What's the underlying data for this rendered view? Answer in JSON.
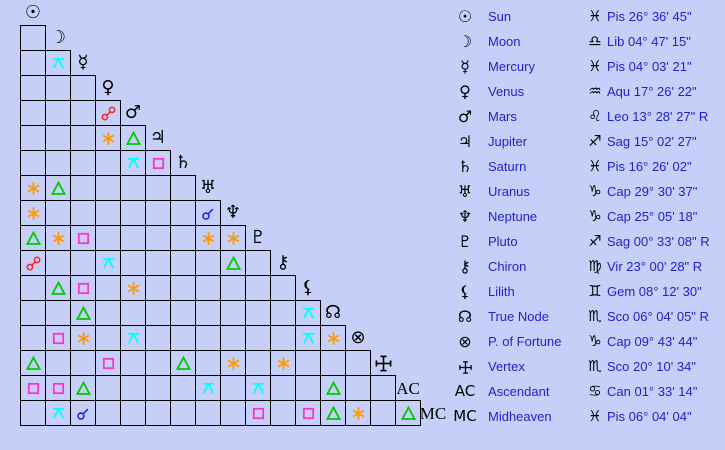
{
  "background_color": "#c6cff7",
  "grid_line_color": "#000000",
  "text_color": "#2222cc",
  "glyph_color": "#000000",
  "aspect_colors": {
    "conjunction": "#2222ee",
    "sextile": "#ff9900",
    "square": "#ff33cc",
    "trine": "#00cc00",
    "opposition": "#ff2222",
    "quincunx": "#00ffff"
  },
  "planets": [
    {
      "id": "sun",
      "glyph": "☉",
      "glyph_kind": "astro",
      "name": "Sun",
      "sign_glyph": "♓",
      "position": "Pis 26° 36' 45\""
    },
    {
      "id": "moon",
      "glyph": "☽",
      "glyph_kind": "astro",
      "name": "Moon",
      "sign_glyph": "♎",
      "position": "Lib 04° 47' 15\""
    },
    {
      "id": "mercury",
      "glyph": "☿",
      "glyph_kind": "astro",
      "name": "Mercury",
      "sign_glyph": "♓",
      "position": "Pis 04° 03' 21\""
    },
    {
      "id": "venus",
      "glyph": "♀",
      "glyph_kind": "astro",
      "name": "Venus",
      "sign_glyph": "♒",
      "position": "Aqu 17° 26' 22\""
    },
    {
      "id": "mars",
      "glyph": "♂",
      "glyph_kind": "astro",
      "name": "Mars",
      "sign_glyph": "♌",
      "position": "Leo 13° 28' 27\" R"
    },
    {
      "id": "jupiter",
      "glyph": "♃",
      "glyph_kind": "astro",
      "name": "Jupiter",
      "sign_glyph": "♐",
      "position": "Sag 15° 02' 27\""
    },
    {
      "id": "saturn",
      "glyph": "♄",
      "glyph_kind": "astro",
      "name": "Saturn",
      "sign_glyph": "♓",
      "position": "Pis 16° 26' 02\""
    },
    {
      "id": "uranus",
      "glyph": "♅",
      "glyph_kind": "astro",
      "name": "Uranus",
      "sign_glyph": "♑",
      "position": "Cap 29° 30' 37\""
    },
    {
      "id": "neptune",
      "glyph": "♆",
      "glyph_kind": "astro",
      "name": "Neptune",
      "sign_glyph": "♑",
      "position": "Cap 25° 05' 18\""
    },
    {
      "id": "pluto",
      "glyph": "♇",
      "glyph_kind": "astro",
      "name": "Pluto",
      "sign_glyph": "♐",
      "position": "Sag 00° 33' 08\" R"
    },
    {
      "id": "chiron",
      "glyph": "⚷",
      "glyph_kind": "astro",
      "name": "Chiron",
      "sign_glyph": "♍",
      "position": "Vir 23° 00' 28\" R"
    },
    {
      "id": "lilith",
      "glyph": "⚸",
      "glyph_kind": "astro",
      "name": "Lilith",
      "sign_glyph": "♊",
      "position": "Gem 08° 12' 30\""
    },
    {
      "id": "true-node",
      "glyph": "☊",
      "glyph_kind": "astro",
      "name": "True Node",
      "sign_glyph": "♏",
      "position": "Sco 06° 04' 05\" R"
    },
    {
      "id": "p-of-fortune",
      "glyph": "⊗",
      "glyph_kind": "astro",
      "name": "P. of Fortune",
      "sign_glyph": "♑",
      "position": "Cap 09° 43' 44\""
    },
    {
      "id": "vertex",
      "glyph": "",
      "glyph_kind": "vertex",
      "name": "Vertex",
      "sign_glyph": "♏",
      "position": "Sco 20° 10' 34\""
    },
    {
      "id": "ascendant",
      "glyph": "AC",
      "glyph_kind": "text",
      "name": "Ascendant",
      "sign_glyph": "♋",
      "position": "Can 01° 33' 14\""
    },
    {
      "id": "midheaven",
      "glyph": "MC",
      "glyph_kind": "text",
      "name": "Midheaven",
      "sign_glyph": "♓",
      "position": "Pis 06° 04' 04\""
    }
  ],
  "aspects": [
    {
      "row": "mercury",
      "col": "moon",
      "type": "quincunx"
    },
    {
      "row": "mars",
      "col": "venus",
      "type": "opposition"
    },
    {
      "row": "jupiter",
      "col": "venus",
      "type": "sextile"
    },
    {
      "row": "jupiter",
      "col": "mars",
      "type": "trine"
    },
    {
      "row": "saturn",
      "col": "mars",
      "type": "quincunx"
    },
    {
      "row": "saturn",
      "col": "jupiter",
      "type": "square"
    },
    {
      "row": "uranus",
      "col": "sun",
      "type": "sextile"
    },
    {
      "row": "uranus",
      "col": "moon",
      "type": "trine"
    },
    {
      "row": "neptune",
      "col": "sun",
      "type": "sextile"
    },
    {
      "row": "neptune",
      "col": "uranus",
      "type": "conjunction"
    },
    {
      "row": "pluto",
      "col": "sun",
      "type": "trine"
    },
    {
      "row": "pluto",
      "col": "moon",
      "type": "sextile"
    },
    {
      "row": "pluto",
      "col": "mercury",
      "type": "square"
    },
    {
      "row": "pluto",
      "col": "uranus",
      "type": "sextile"
    },
    {
      "row": "pluto",
      "col": "neptune",
      "type": "sextile"
    },
    {
      "row": "chiron",
      "col": "sun",
      "type": "opposition"
    },
    {
      "row": "chiron",
      "col": "venus",
      "type": "quincunx"
    },
    {
      "row": "chiron",
      "col": "neptune",
      "type": "trine"
    },
    {
      "row": "lilith",
      "col": "moon",
      "type": "trine"
    },
    {
      "row": "lilith",
      "col": "mercury",
      "type": "square"
    },
    {
      "row": "lilith",
      "col": "mars",
      "type": "sextile"
    },
    {
      "row": "true-node",
      "col": "mercury",
      "type": "trine"
    },
    {
      "row": "true-node",
      "col": "lilith",
      "type": "quincunx"
    },
    {
      "row": "p-of-fortune",
      "col": "moon",
      "type": "square"
    },
    {
      "row": "p-of-fortune",
      "col": "mercury",
      "type": "sextile"
    },
    {
      "row": "p-of-fortune",
      "col": "mars",
      "type": "quincunx"
    },
    {
      "row": "p-of-fortune",
      "col": "lilith",
      "type": "quincunx"
    },
    {
      "row": "p-of-fortune",
      "col": "true-node",
      "type": "sextile"
    },
    {
      "row": "vertex",
      "col": "sun",
      "type": "trine"
    },
    {
      "row": "vertex",
      "col": "venus",
      "type": "square"
    },
    {
      "row": "vertex",
      "col": "saturn",
      "type": "trine"
    },
    {
      "row": "vertex",
      "col": "neptune",
      "type": "sextile"
    },
    {
      "row": "vertex",
      "col": "chiron",
      "type": "sextile"
    },
    {
      "row": "ascendant",
      "col": "sun",
      "type": "square"
    },
    {
      "row": "ascendant",
      "col": "moon",
      "type": "square"
    },
    {
      "row": "ascendant",
      "col": "mercury",
      "type": "trine"
    },
    {
      "row": "ascendant",
      "col": "uranus",
      "type": "quincunx"
    },
    {
      "row": "ascendant",
      "col": "pluto",
      "type": "quincunx"
    },
    {
      "row": "ascendant",
      "col": "true-node",
      "type": "trine"
    },
    {
      "row": "midheaven",
      "col": "moon",
      "type": "quincunx"
    },
    {
      "row": "midheaven",
      "col": "mercury",
      "type": "conjunction"
    },
    {
      "row": "midheaven",
      "col": "pluto",
      "type": "square"
    },
    {
      "row": "midheaven",
      "col": "lilith",
      "type": "square"
    },
    {
      "row": "midheaven",
      "col": "true-node",
      "type": "trine"
    },
    {
      "row": "midheaven",
      "col": "p-of-fortune",
      "type": "sextile"
    },
    {
      "row": "midheaven",
      "col": "ascendant",
      "type": "trine"
    }
  ]
}
